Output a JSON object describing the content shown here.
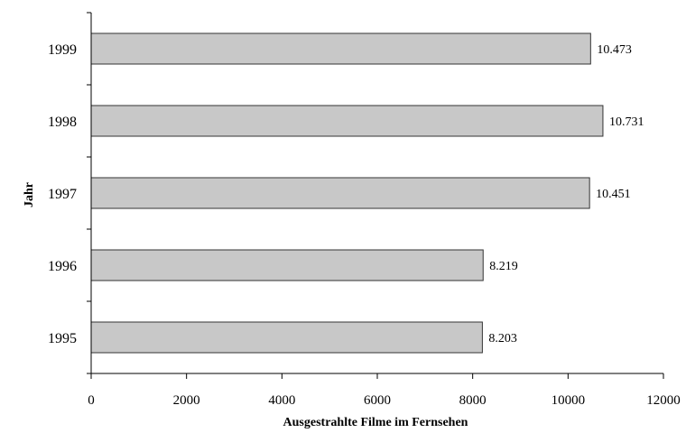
{
  "chart_data": {
    "type": "bar",
    "orientation": "horizontal",
    "categories": [
      "1995",
      "1996",
      "1997",
      "1998",
      "1999"
    ],
    "values": [
      8203,
      8219,
      10451,
      10731,
      10473
    ],
    "value_labels": [
      "8.203",
      "8.219",
      "10.451",
      "10.731",
      "10.473"
    ],
    "xlabel": "Ausgestrahlte Filme im Fernsehen",
    "ylabel": "Jahr",
    "xlim": [
      0,
      12000
    ],
    "xticks": [
      "0",
      "2000",
      "4000",
      "6000",
      "8000",
      "10000",
      "12000"
    ],
    "xtick_values": [
      0,
      2000,
      4000,
      6000,
      8000,
      10000,
      12000
    ],
    "grid": false,
    "legend": "none",
    "bar_color": "#c8c8c8",
    "bar_edge_color": "#333333"
  }
}
